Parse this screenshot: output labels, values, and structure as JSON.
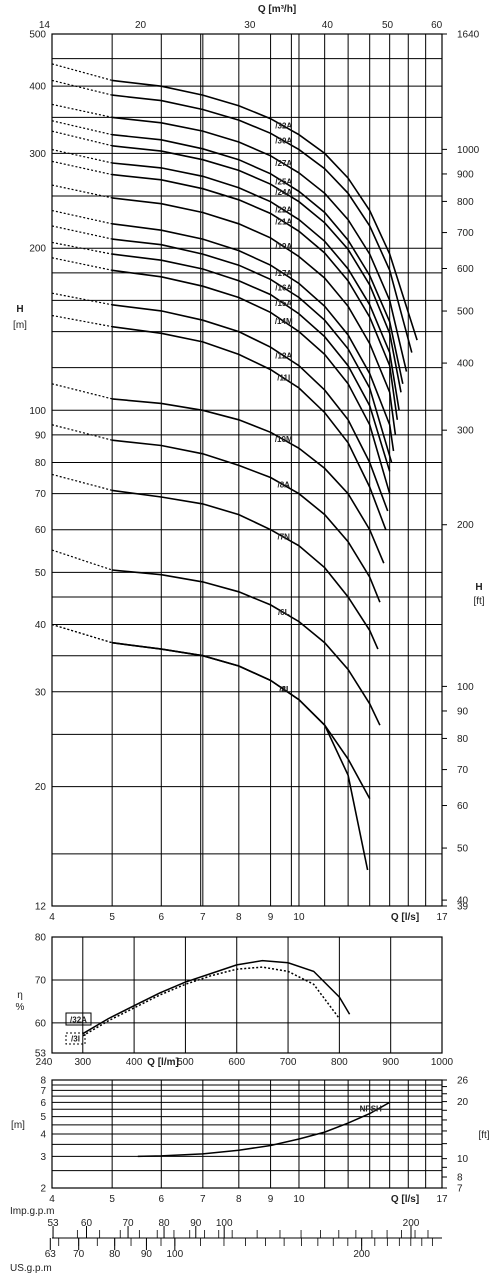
{
  "chart_data": [
    {
      "type": "line",
      "title": "",
      "top_axis": {
        "label": "Q",
        "unit": "[m³/h]",
        "ticks": [
          14,
          20,
          30,
          40,
          50,
          60
        ]
      },
      "x_axis": {
        "label": "Q",
        "unit": "[l/s]",
        "scale": "log",
        "xlim": [
          4,
          17
        ],
        "ticks": [
          4,
          5,
          6,
          7,
          8,
          9,
          10
        ]
      },
      "y_axis": {
        "label": "H",
        "unit": "[m]",
        "scale": "log",
        "ylim": [
          12,
          500
        ],
        "ticks": [
          12,
          20,
          30,
          40,
          50,
          60,
          70,
          80,
          90,
          100,
          200,
          300,
          400,
          500
        ]
      },
      "y2_axis": {
        "label": "H",
        "unit": "[ft]",
        "scale": "log",
        "ylim": [
          39,
          1640
        ],
        "ticks": [
          39,
          40,
          50,
          60,
          70,
          80,
          90,
          100,
          200,
          300,
          400,
          500,
          600,
          700,
          800,
          900,
          1000,
          1640
        ]
      },
      "series": [
        {
          "name": "/32A",
          "shutoff": 440,
          "x": [
            5,
            6,
            7,
            8,
            9,
            10,
            11,
            12,
            13,
            14,
            15.5
          ],
          "y": [
            410,
            400,
            385,
            368,
            348,
            325,
            300,
            270,
            235,
            195,
            135
          ]
        },
        {
          "name": "/30A",
          "shutoff": 410,
          "x": [
            5,
            6,
            7,
            8,
            9,
            10,
            11,
            12,
            13,
            14,
            15.2
          ],
          "y": [
            385,
            376,
            362,
            346,
            327,
            305,
            281,
            253,
            220,
            182,
            128
          ]
        },
        {
          "name": "/27A",
          "shutoff": 370,
          "x": [
            5,
            6,
            7,
            8,
            9,
            10,
            11,
            12,
            13,
            14,
            14.9
          ],
          "y": [
            350,
            342,
            330,
            315,
            297,
            276,
            253,
            226,
            195,
            160,
            118
          ]
        },
        {
          "name": "/25A",
          "shutoff": 345,
          "x": [
            5,
            6,
            7,
            8,
            9,
            10,
            11,
            12,
            13,
            14,
            14.7
          ],
          "y": [
            325,
            318,
            306,
            292,
            275,
            255,
            233,
            207,
            178,
            146,
            112
          ]
        },
        {
          "name": "/24A",
          "shutoff": 330,
          "x": [
            5,
            6,
            7,
            8,
            9,
            10,
            11,
            12,
            13,
            14,
            14.6
          ],
          "y": [
            310,
            303,
            292,
            279,
            263,
            244,
            223,
            199,
            171,
            139,
            108
          ]
        },
        {
          "name": "/22A",
          "shutoff": 305,
          "x": [
            5,
            6,
            7,
            8,
            9,
            10,
            11,
            12,
            13,
            14,
            14.5
          ],
          "y": [
            288,
            282,
            272,
            259,
            244,
            226,
            206,
            183,
            157,
            128,
            100
          ]
        },
        {
          "name": "/21A",
          "shutoff": 290,
          "x": [
            5,
            6,
            7,
            8,
            9,
            10,
            11,
            12,
            13,
            14,
            14.4
          ],
          "y": [
            274,
            268,
            258,
            246,
            232,
            215,
            196,
            174,
            149,
            121,
            96
          ]
        },
        {
          "name": "/19A",
          "shutoff": 262,
          "x": [
            5,
            6,
            7,
            8,
            9,
            10,
            11,
            12,
            13,
            14,
            14.3
          ],
          "y": [
            248,
            242,
            233,
            222,
            209,
            193,
            176,
            156,
            133,
            108,
            90
          ]
        },
        {
          "name": "/17A",
          "shutoff": 235,
          "x": [
            5,
            6,
            7,
            8,
            9,
            10,
            11,
            12,
            13,
            14,
            14.2
          ],
          "y": [
            222,
            216,
            208,
            198,
            186,
            172,
            156,
            138,
            117,
            94,
            84
          ]
        },
        {
          "name": "/16A",
          "shutoff": 220,
          "x": [
            5,
            6,
            7,
            8,
            9,
            10,
            11,
            12,
            13,
            14.1
          ],
          "y": [
            208,
            203,
            195,
            186,
            175,
            162,
            147,
            130,
            110,
            80
          ]
        },
        {
          "name": "/15A",
          "shutoff": 205,
          "x": [
            5,
            6,
            7,
            8,
            9,
            10,
            11,
            12,
            13,
            14
          ],
          "y": [
            195,
            190,
            183,
            174,
            164,
            151,
            137,
            121,
            102,
            77
          ]
        },
        {
          "name": "/14M",
          "shutoff": 192,
          "x": [
            5,
            6,
            7,
            8,
            9,
            10,
            11,
            12,
            13,
            14
          ],
          "y": [
            182,
            177,
            170,
            162,
            152,
            140,
            127,
            112,
            94,
            70
          ]
        },
        {
          "name": "/12A",
          "shutoff": 165,
          "x": [
            5,
            6,
            7,
            8,
            9,
            10,
            11,
            12,
            13,
            13.9
          ],
          "y": [
            157,
            153,
            147,
            140,
            131,
            121,
            109,
            96,
            80,
            65
          ]
        },
        {
          "name": "/11I",
          "shutoff": 150,
          "x": [
            5,
            6,
            7,
            8,
            9,
            10,
            11,
            12,
            13,
            13.8
          ],
          "y": [
            143,
            139,
            134,
            127,
            119,
            110,
            99,
            87,
            72,
            60
          ]
        },
        {
          "name": "/10M",
          "shutoff": 112,
          "x": [
            5,
            6,
            7,
            8,
            9,
            10,
            11,
            12,
            13,
            13.7
          ],
          "y": [
            105,
            103,
            100,
            96,
            91,
            85,
            78,
            70,
            60,
            52
          ]
        },
        {
          "name": "/8A",
          "shutoff": 94,
          "x": [
            5,
            6,
            7,
            8,
            9,
            10,
            11,
            12,
            13,
            13.5
          ],
          "y": [
            88,
            86,
            83,
            79,
            75,
            70,
            64,
            57,
            49,
            44
          ]
        },
        {
          "name": "/7N",
          "shutoff": 76,
          "x": [
            5,
            6,
            7,
            8,
            9,
            10,
            11,
            12,
            13,
            13.4
          ],
          "y": [
            71,
            69,
            67,
            64,
            60,
            56,
            51,
            45,
            39,
            36
          ]
        },
        {
          "name": "/6L",
          "shutoff": 55,
          "x": [
            5,
            6,
            7,
            8,
            9,
            10,
            11,
            12,
            13,
            13.5
          ],
          "y": [
            50.5,
            49.5,
            48,
            46,
            43.5,
            40.5,
            37,
            33,
            28.5,
            26
          ]
        },
        {
          "name": "/4I",
          "shutoff": 40,
          "x": [
            5,
            6,
            7,
            8,
            9,
            10,
            11,
            12,
            13
          ],
          "y": [
            37,
            36,
            35,
            33.5,
            31.5,
            29,
            26,
            22.5,
            19
          ]
        },
        {
          "name": "/3I",
          "shutoff": 40,
          "x": [
            5,
            6,
            7,
            8,
            9,
            10,
            11,
            12,
            12.9
          ],
          "y": [
            37,
            36,
            35,
            33.5,
            31.5,
            29,
            26,
            21,
            14
          ]
        }
      ]
    },
    {
      "type": "line",
      "title": "",
      "y_axis": {
        "label": "η",
        "unit": "%",
        "ylim": [
          53,
          80
        ],
        "ticks": [
          53,
          60,
          70,
          80
        ]
      },
      "x_axis": {
        "label": "Q",
        "unit": "[l/m]",
        "xlim": [
          240,
          1000
        ],
        "ticks": [
          240,
          300,
          400,
          500,
          600,
          700,
          800,
          900,
          1000
        ]
      },
      "series": [
        {
          "name": "/32A",
          "style": "solid",
          "x": [
            300,
            350,
            400,
            450,
            500,
            550,
            600,
            650,
            700,
            750,
            800,
            820
          ],
          "y": [
            57.5,
            61,
            64,
            67,
            69.5,
            71.5,
            73.5,
            74.5,
            74,
            72,
            66,
            62
          ]
        },
        {
          "name": "/3I",
          "style": "dashed",
          "x": [
            300,
            350,
            400,
            450,
            500,
            550,
            600,
            650,
            700,
            750,
            800
          ],
          "y": [
            57,
            60.5,
            63.5,
            66.5,
            69,
            71,
            72.5,
            73,
            72,
            69,
            61
          ]
        }
      ]
    },
    {
      "type": "line",
      "title": "",
      "y_axis": {
        "label": "",
        "unit": "[m]",
        "scale": "log",
        "ylim": [
          2,
          8
        ],
        "ticks": [
          2,
          3,
          4,
          5,
          6,
          7,
          8
        ]
      },
      "y2_axis": {
        "label": "",
        "unit": "[ft]",
        "scale": "log",
        "ylim": [
          7,
          26
        ],
        "ticks": [
          7,
          8,
          10,
          20,
          26
        ]
      },
      "x_axis": {
        "label": "Q",
        "unit": "[l/s]",
        "scale": "log",
        "xlim": [
          4,
          17
        ],
        "ticks": [
          4,
          5,
          6,
          7,
          8,
          9,
          10,
          17
        ]
      },
      "series": [
        {
          "name": "NPSH",
          "x": [
            5.5,
            6,
            7,
            8,
            9,
            10,
            11,
            12,
            13,
            14
          ],
          "y": [
            3.0,
            3.02,
            3.1,
            3.25,
            3.45,
            3.75,
            4.1,
            4.6,
            5.2,
            6.0
          ]
        }
      ]
    },
    {
      "type": "table",
      "title": "",
      "imp_gpm": {
        "label": "Imp.g.p.m",
        "ticks": [
          53,
          60,
          70,
          80,
          90,
          100,
          200
        ]
      },
      "us_gpm": {
        "label": "US.g.p.m",
        "ticks": [
          63,
          70,
          80,
          90,
          100,
          200
        ]
      }
    }
  ]
}
